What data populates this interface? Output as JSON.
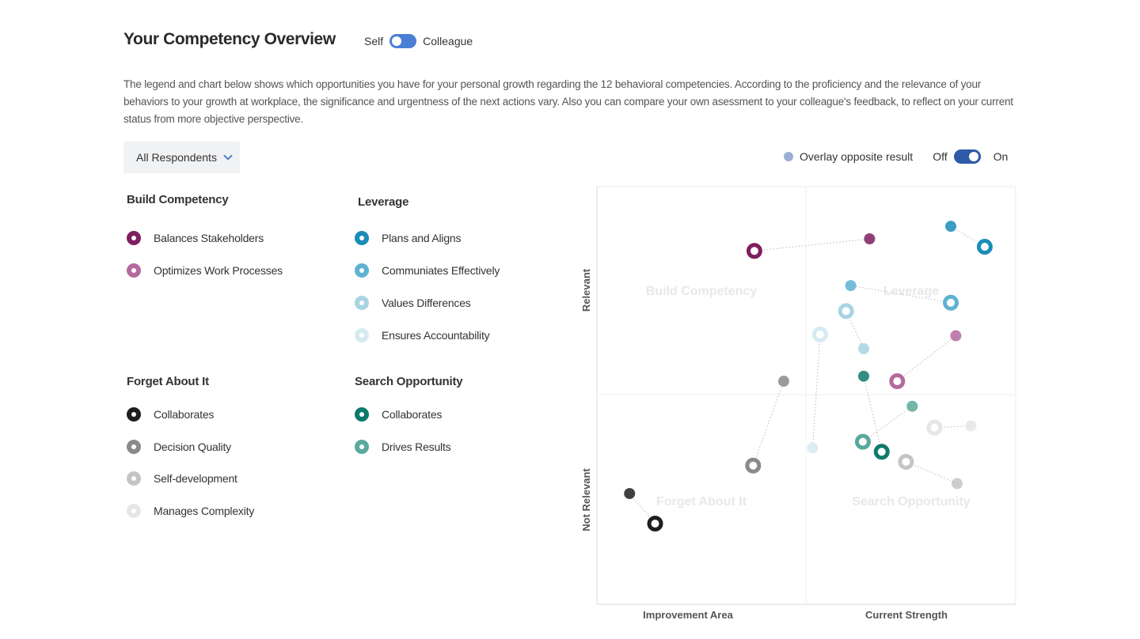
{
  "header": {
    "title": "Your Competency Overview",
    "toggle_left": "Self",
    "toggle_right": "Colleague"
  },
  "description": "The legend and chart below shows which opportunities you have for your personal growth regarding the 12 behavioral competencies. According to the proficiency and the relevance of your behaviors to your growth at workplace, the significance and urgentness of the next actions vary. Also you can compare your own asessment to your colleague's feedback, to reflect on your current status from more objective perspective.",
  "filter": {
    "selected": "All Respondents"
  },
  "overlay": {
    "label": "Overlay opposite result",
    "off": "Off",
    "on": "On",
    "enabled": true,
    "dot_color": "#9aaed0"
  },
  "legend": {
    "build": {
      "title": "Build Competency",
      "items": [
        {
          "label": "Balances Stakeholders",
          "color": "#7e1f5f"
        },
        {
          "label": "Optimizes Work Processes",
          "color": "#b56a9f"
        }
      ]
    },
    "leverage": {
      "title": "Leverage",
      "items": [
        {
          "label": "Plans and Aligns",
          "color": "#1a8cb8"
        },
        {
          "label": "Communiates Effectively",
          "color": "#5fb2d2"
        },
        {
          "label": "Values Differences",
          "color": "#a8d4e3"
        },
        {
          "label": "Ensures Accountability",
          "color": "#d6eaf1"
        }
      ]
    },
    "forget": {
      "title": "Forget About It",
      "items": [
        {
          "label": "Collaborates",
          "color": "#1e1e1e"
        },
        {
          "label": "Decision Quality",
          "color": "#8a8a8a"
        },
        {
          "label": "Self-development",
          "color": "#c4c4c4"
        },
        {
          "label": "Manages Complexity",
          "color": "#e6e6e6"
        }
      ]
    },
    "search": {
      "title": "Search Opportunity",
      "items": [
        {
          "label": "Collaborates",
          "color": "#0e7a6b"
        },
        {
          "label": "Drives Results",
          "color": "#5aa99e"
        }
      ]
    }
  },
  "chart_data": {
    "type": "scatter",
    "y_axis": {
      "upper_label": "Relevant",
      "lower_label": "Not Relevant"
    },
    "x_axis": {
      "left_label": "Improvement Area",
      "right_label": "Current Strength"
    },
    "quadrants": {
      "top_left": "Build Competency",
      "top_right": "Leverage",
      "bottom_left": "Forget About It",
      "bottom_right": "Search Opportunity"
    },
    "ranges": {
      "x": [
        0,
        1
      ],
      "y": [
        0,
        1
      ]
    },
    "points": [
      {
        "name": "Balances Stakeholders",
        "color": "#7e1f5f",
        "self": [
          0.376,
          0.846
        ],
        "other": [
          0.651,
          0.875
        ]
      },
      {
        "name": "Optimizes Work Processes",
        "color": "#b56a9f",
        "self": [
          0.717,
          0.534
        ],
        "other": [
          0.857,
          0.643
        ]
      },
      {
        "name": "Plans and Aligns",
        "color": "#1a8cb8",
        "self": [
          0.926,
          0.856
        ],
        "other": [
          0.845,
          0.905
        ]
      },
      {
        "name": "Communiates Effectively",
        "color": "#5fb2d2",
        "self": [
          0.845,
          0.722
        ],
        "other": [
          0.606,
          0.763
        ]
      },
      {
        "name": "Values Differences",
        "color": "#a8d4e3",
        "self": [
          0.595,
          0.702
        ],
        "other": [
          0.637,
          0.612
        ]
      },
      {
        "name": "Ensures Accountability",
        "color": "#d6eaf1",
        "self": [
          0.533,
          0.646
        ],
        "other": [
          0.515,
          0.374
        ]
      },
      {
        "name": "Collaborates (Forget About It)",
        "color": "#1e1e1e",
        "self": [
          0.139,
          0.193
        ],
        "other": [
          0.078,
          0.265
        ]
      },
      {
        "name": "Decision Quality",
        "color": "#8a8a8a",
        "self": [
          0.373,
          0.332
        ],
        "other": [
          0.446,
          0.534
        ]
      },
      {
        "name": "Self-development",
        "color": "#c4c4c4",
        "self": [
          0.738,
          0.341
        ],
        "other": [
          0.86,
          0.289
        ]
      },
      {
        "name": "Manages Complexity",
        "color": "#e6e6e6",
        "self": [
          0.806,
          0.423
        ],
        "other": [
          0.893,
          0.427
        ]
      },
      {
        "name": "Collaborates (Search Opportunity)",
        "color": "#0e7a6b",
        "self": [
          0.68,
          0.365
        ],
        "other": [
          0.637,
          0.546
        ]
      },
      {
        "name": "Drives Results",
        "color": "#5aa99e",
        "self": [
          0.635,
          0.389
        ],
        "other": [
          0.753,
          0.474
        ]
      }
    ]
  }
}
